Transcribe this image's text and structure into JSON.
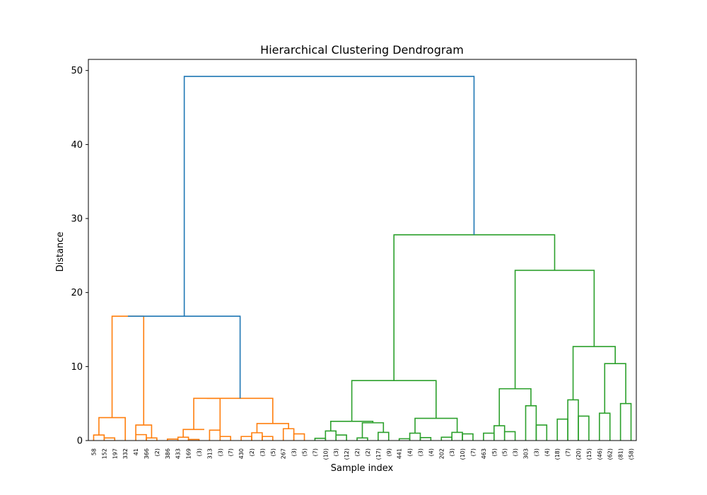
{
  "chart_data": {
    "type": "dendrogram",
    "title": "Hierarchical Clustering Dendrogram",
    "xlabel": "Sample index",
    "ylabel": "Distance",
    "ylim": [
      0,
      51.5
    ],
    "yticks": [
      0,
      10,
      20,
      30,
      40,
      50
    ],
    "grid": false,
    "colors": {
      "cluster_a": "#ff7f0e",
      "cluster_b": "#2ca02c",
      "root": "#1f77b4"
    },
    "leaves": [
      "58",
      "152",
      "197",
      "332",
      "41",
      "366",
      "(2)",
      "386",
      "433",
      "169",
      "(3)",
      "313",
      "(3)",
      "(7)",
      "430",
      "(2)",
      "(3)",
      "(5)",
      "267",
      "(3)",
      "(5)",
      "(7)",
      "(10)",
      "(3)",
      "(12)",
      "(2)",
      "(2)",
      "(17)",
      "(9)",
      "441",
      "(4)",
      "(3)",
      "(4)",
      "202",
      "(3)",
      "(10)",
      "(7)",
      "463",
      "(5)",
      "(5)",
      "(3)",
      "303",
      "(3)",
      "(4)",
      "(18)",
      "(7)",
      "(20)",
      "(15)",
      "(46)",
      "(62)",
      "(81)",
      "(58)"
    ],
    "links": [
      {
        "left": 0,
        "right": 1,
        "left_height": 0,
        "right_height": 0,
        "height": 0.75,
        "color": "cluster_a"
      },
      {
        "left": 1,
        "right": 2,
        "left_height": 0,
        "right_height": 0,
        "height": 0.35,
        "color": "cluster_a"
      },
      {
        "left": 0.5,
        "right": 3,
        "left_height": 0.75,
        "right_height": 0,
        "height": 3.1,
        "color": "cluster_a"
      },
      {
        "left": 4,
        "right": 5,
        "left_height": 0,
        "right_height": 0,
        "height": 0.8,
        "color": "cluster_a"
      },
      {
        "left": 5,
        "right": 6,
        "left_height": 0,
        "right_height": 0,
        "height": 0.35,
        "color": "cluster_a"
      },
      {
        "left": 4,
        "right": 5.5,
        "left_height": 0.8,
        "right_height": 0.35,
        "height": 2.1,
        "color": "cluster_a"
      },
      {
        "left": 1.75,
        "right": 4.75,
        "left_height": 3.1,
        "right_height": 2.1,
        "height": 16.8,
        "color": "cluster_a"
      },
      {
        "left": 7,
        "right": 8,
        "left_height": 0,
        "right_height": 0,
        "height": 0.2,
        "color": "cluster_a"
      },
      {
        "left": 8,
        "right": 9,
        "left_height": 0,
        "right_height": 0,
        "height": 0.45,
        "color": "cluster_a"
      },
      {
        "left": 9,
        "right": 10,
        "left_height": 0,
        "right_height": 0,
        "height": 0.15,
        "color": "cluster_a"
      },
      {
        "left": 8.5,
        "right": 10.5,
        "left_height": 0.45,
        "right_height": 1.5,
        "height": 1.5,
        "color": "cluster_a"
      },
      {
        "left": 11,
        "right": 12,
        "left_height": 0,
        "right_height": 0,
        "height": 1.4,
        "color": "cluster_a"
      },
      {
        "left": 12,
        "right": 13,
        "left_height": 0,
        "right_height": 0,
        "height": 0.55,
        "color": "cluster_a"
      },
      {
        "left": 9.5,
        "right": 12,
        "left_height": 1.5,
        "right_height": 1.4,
        "height": 5.7,
        "color": "cluster_a"
      },
      {
        "left": 14,
        "right": 15,
        "left_height": 0,
        "right_height": 0,
        "height": 0.55,
        "color": "cluster_a"
      },
      {
        "left": 15,
        "right": 16,
        "left_height": 0,
        "right_height": 0,
        "height": 1.05,
        "color": "cluster_a"
      },
      {
        "left": 16,
        "right": 17,
        "left_height": 0,
        "right_height": 0,
        "height": 0.55,
        "color": "cluster_a"
      },
      {
        "left": 15.5,
        "right": 18.5,
        "left_height": 1.05,
        "right_height": 1.6,
        "height": 2.3,
        "color": "cluster_a"
      },
      {
        "left": 18,
        "right": 19,
        "left_height": 0,
        "right_height": 0,
        "height": 1.6,
        "color": "cluster_a"
      },
      {
        "left": 19,
        "right": 20,
        "left_height": 0,
        "right_height": 0,
        "height": 0.9,
        "color": "cluster_a"
      },
      {
        "left": 10.75,
        "right": 17,
        "left_height": 5.7,
        "right_height": 2.3,
        "height": 5.7,
        "color": "cluster_a"
      },
      {
        "left": 3.25,
        "right": 13.9,
        "left_height": 16.8,
        "right_height": 5.7,
        "height": 16.8,
        "color": "root"
      },
      {
        "left": 21,
        "right": 22,
        "left_height": 0,
        "right_height": 0,
        "height": 0.3,
        "color": "cluster_b"
      },
      {
        "left": 22,
        "right": 23,
        "left_height": 0,
        "right_height": 0,
        "height": 1.3,
        "color": "cluster_b"
      },
      {
        "left": 23,
        "right": 24,
        "left_height": 0,
        "right_height": 0,
        "height": 0.75,
        "color": "cluster_b"
      },
      {
        "left": 22.5,
        "right": 26.5,
        "left_height": 1.3,
        "right_height": 2.4,
        "height": 2.6,
        "color": "cluster_b"
      },
      {
        "left": 25,
        "right": 26,
        "left_height": 0,
        "right_height": 0,
        "height": 0.35,
        "color": "cluster_b"
      },
      {
        "left": 25.5,
        "right": 27.5,
        "left_height": 0.35,
        "right_height": 1.1,
        "height": 2.4,
        "color": "cluster_b"
      },
      {
        "left": 27,
        "right": 28,
        "left_height": 0,
        "right_height": 0,
        "height": 1.1,
        "color": "cluster_b"
      },
      {
        "left": 29,
        "right": 30,
        "left_height": 0,
        "right_height": 0,
        "height": 0.25,
        "color": "cluster_b"
      },
      {
        "left": 30,
        "right": 31,
        "left_height": 0,
        "right_height": 0,
        "height": 1.0,
        "color": "cluster_b"
      },
      {
        "left": 31,
        "right": 32,
        "left_height": 0,
        "right_height": 0,
        "height": 0.4,
        "color": "cluster_b"
      },
      {
        "left": 30.5,
        "right": 34.5,
        "left_height": 1.0,
        "right_height": 1.1,
        "height": 3.0,
        "color": "cluster_b"
      },
      {
        "left": 33,
        "right": 34,
        "left_height": 0,
        "right_height": 0,
        "height": 0.45,
        "color": "cluster_b"
      },
      {
        "left": 34,
        "right": 35,
        "left_height": 0,
        "right_height": 0,
        "height": 1.1,
        "color": "cluster_b"
      },
      {
        "left": 35,
        "right": 36,
        "left_height": 0,
        "right_height": 0,
        "height": 0.9,
        "color": "cluster_b"
      },
      {
        "left": 24.5,
        "right": 32.5,
        "left_height": 2.6,
        "right_height": 3.0,
        "height": 8.1,
        "color": "cluster_b"
      },
      {
        "left": 37,
        "right": 38,
        "left_height": 0,
        "right_height": 0,
        "height": 1.0,
        "color": "cluster_b"
      },
      {
        "left": 38,
        "right": 39,
        "left_height": 0,
        "right_height": 0,
        "height": 2.0,
        "color": "cluster_b"
      },
      {
        "left": 39,
        "right": 40,
        "left_height": 0,
        "right_height": 0,
        "height": 1.2,
        "color": "cluster_b"
      },
      {
        "left": 38.5,
        "right": 41.5,
        "left_height": 2.0,
        "right_height": 4.7,
        "height": 7.0,
        "color": "cluster_b"
      },
      {
        "left": 41,
        "right": 42,
        "left_height": 0,
        "right_height": 0,
        "height": 4.7,
        "color": "cluster_b"
      },
      {
        "left": 42,
        "right": 43,
        "left_height": 0,
        "right_height": 0,
        "height": 2.1,
        "color": "cluster_b"
      },
      {
        "left": 44,
        "right": 45,
        "left_height": 0,
        "right_height": 0,
        "height": 2.9,
        "color": "cluster_b"
      },
      {
        "left": 45,
        "right": 46,
        "left_height": 0,
        "right_height": 0,
        "height": 5.5,
        "color": "cluster_b"
      },
      {
        "left": 46,
        "right": 47,
        "left_height": 0,
        "right_height": 0,
        "height": 3.3,
        "color": "cluster_b"
      },
      {
        "left": 48,
        "right": 49,
        "left_height": 0,
        "right_height": 0,
        "height": 3.7,
        "color": "cluster_b"
      },
      {
        "left": 50,
        "right": 51,
        "left_height": 0,
        "right_height": 0,
        "height": 5.0,
        "color": "cluster_b"
      },
      {
        "left": 48.5,
        "right": 50.5,
        "left_height": 3.7,
        "right_height": 5.0,
        "height": 10.4,
        "color": "cluster_b"
      },
      {
        "left": 45.5,
        "right": 49.5,
        "left_height": 5.5,
        "right_height": 10.4,
        "height": 12.7,
        "color": "cluster_b"
      },
      {
        "left": 40,
        "right": 47.5,
        "left_height": 7.0,
        "right_height": 12.7,
        "height": 23.0,
        "color": "cluster_b"
      },
      {
        "left": 28.5,
        "right": 43.75,
        "left_height": 8.1,
        "right_height": 23.0,
        "height": 27.8,
        "color": "cluster_b"
      },
      {
        "left": 8.6,
        "right": 36.1,
        "left_height": 16.8,
        "right_height": 27.8,
        "height": 49.2,
        "color": "root"
      }
    ]
  }
}
